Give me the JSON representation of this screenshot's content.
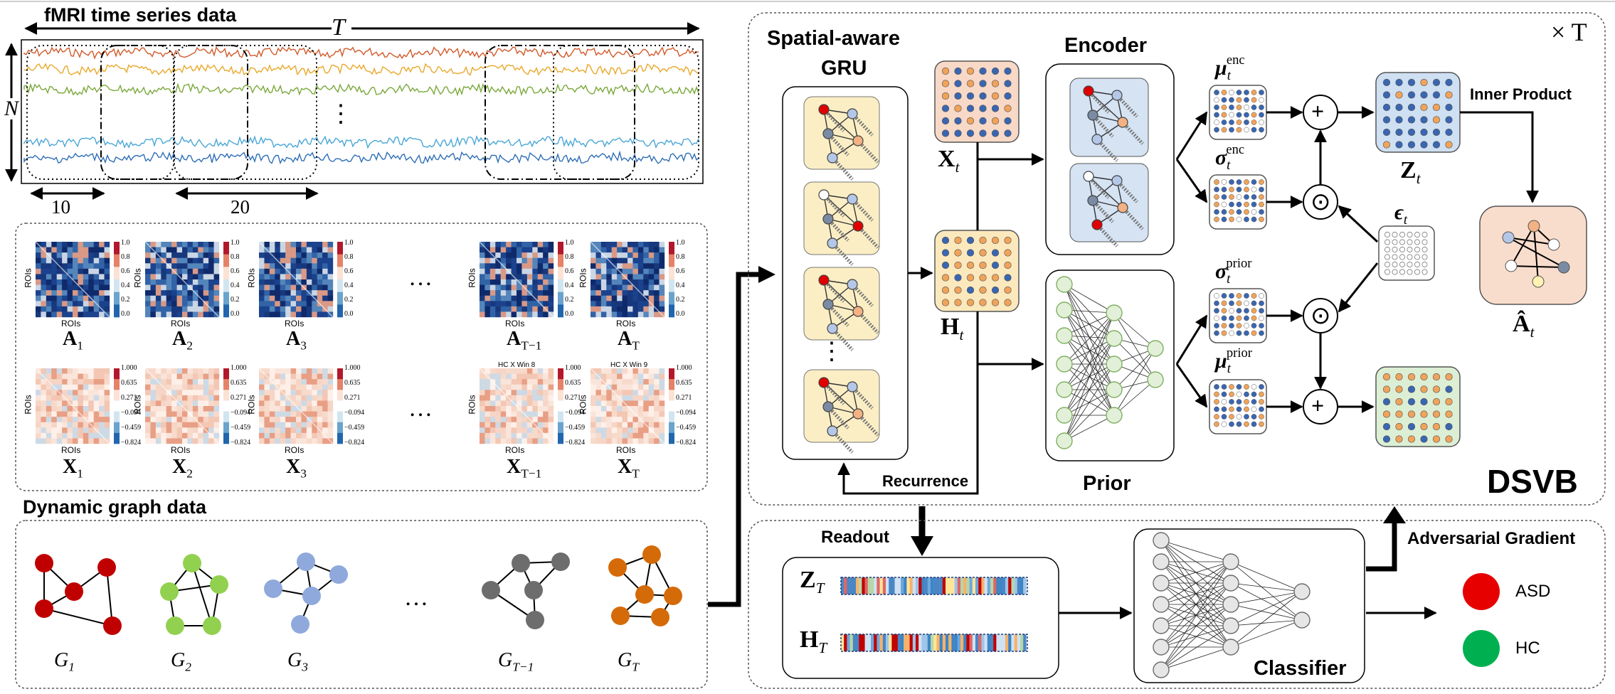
{
  "panels": {
    "fmri_title": "fMRI time series data",
    "time_axis_label": "T",
    "roi_axis_label": "N",
    "window_small": "10",
    "window_large": "20",
    "dynamic_graph_title": "Dynamic graph data"
  },
  "matrix_labels": {
    "rows": "ROIs",
    "cols": "ROIs",
    "A": [
      "A",
      "A",
      "A",
      "A",
      "A"
    ],
    "A_sub": [
      "1",
      "2",
      "3",
      "T−1",
      "T"
    ],
    "X": [
      "X",
      "X",
      "X",
      "X",
      "X"
    ],
    "X_sub": [
      "1",
      "2",
      "3",
      "T−1",
      "T"
    ],
    "A_ticks": [
      "1.0",
      "0.8",
      "0.6",
      "0.4",
      "0.2",
      "0.0"
    ],
    "X_ticks": [
      "1.000",
      "0.635",
      "0.271",
      "−0.094",
      "−0.459",
      "−0.824"
    ],
    "X_titles": [
      "HC X Win 8",
      "HC X Win 9"
    ]
  },
  "graphs": {
    "labels": [
      "G",
      "G",
      "G",
      "G",
      "G"
    ],
    "subs": [
      "1",
      "2",
      "3",
      "T−1",
      "T"
    ],
    "colors": [
      "#c00000",
      "#92d050",
      "#8fa9dc",
      "#6d6d6d",
      "#d46b08"
    ]
  },
  "dsvb": {
    "repeat": "× T",
    "gru_title_1": "Spatial-aware",
    "gru_title_2": "GRU",
    "encoder": "Encoder",
    "prior": "Prior",
    "recurrence": "Recurrence",
    "inner_product": "Inner Product",
    "name": "DSVB",
    "x_t": "X",
    "h_t": "H",
    "z_t": "Z",
    "a_hat": "Â",
    "t_sub": "t",
    "mu_enc": "μ",
    "sigma_enc": "σ",
    "sigma_prior": "σ",
    "mu_prior": "μ",
    "enc_sup": "enc",
    "prior_sup": "prior",
    "epsilon": "ϵ",
    "plus": "+",
    "odot": "⊙"
  },
  "classifier": {
    "readout": "Readout",
    "z_T": "Z",
    "h_T": "H",
    "T_sub": "T",
    "classifier": "Classifier",
    "adversarial": "Adversarial Gradient",
    "asd": "ASD",
    "hc": "HC"
  },
  "colors": {
    "asd": "#e60000",
    "hc": "#00b050",
    "gru_cell": "#fbeec4",
    "x_box": "#f8d9c8",
    "h_box": "#fbe9bd",
    "z_box": "#cfe0f3",
    "a_box": "#f9ddcc",
    "out_box": "#dcefd5",
    "enc_box": "#d5e3f3",
    "dot_blue": "#3a66b1",
    "dot_orange": "#f0a35a",
    "node_fill": "#e2f0d9",
    "node_stroke": "#7fb061"
  }
}
